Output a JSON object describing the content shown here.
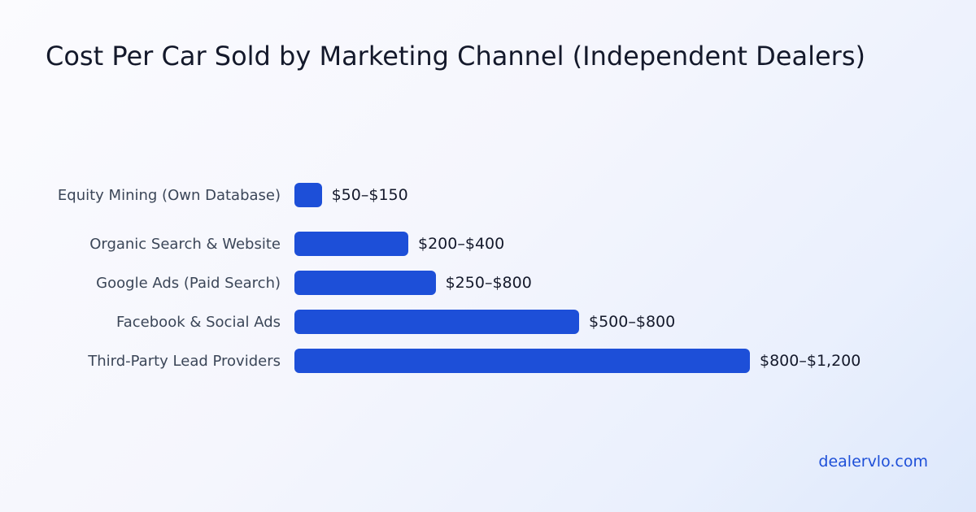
{
  "chart_data": {
    "type": "bar",
    "orientation": "horizontal",
    "title": "Cost Per Car Sold by Marketing Channel (Independent Dealers)",
    "categories": [
      "Equity Mining (Own Database)",
      "Organic Search & Website",
      "Google Ads (Paid Search)",
      "Facebook & Social Ads",
      "Third-Party Lead Providers"
    ],
    "value_labels": [
      "$50–$150",
      "$200–$400",
      "$250–$800",
      "$500–$800",
      "$800–$1,200"
    ],
    "values": [
      60,
      250,
      310,
      625,
      1000
    ],
    "xlim": [
      0,
      1000
    ],
    "grid": false,
    "bar_color": "#1d4fd8"
  },
  "footer": {
    "site": "dealervlo.com"
  },
  "colors": {
    "accent": "#1d4fd8",
    "text": "#14192b",
    "label_text": "#3b4658"
  }
}
